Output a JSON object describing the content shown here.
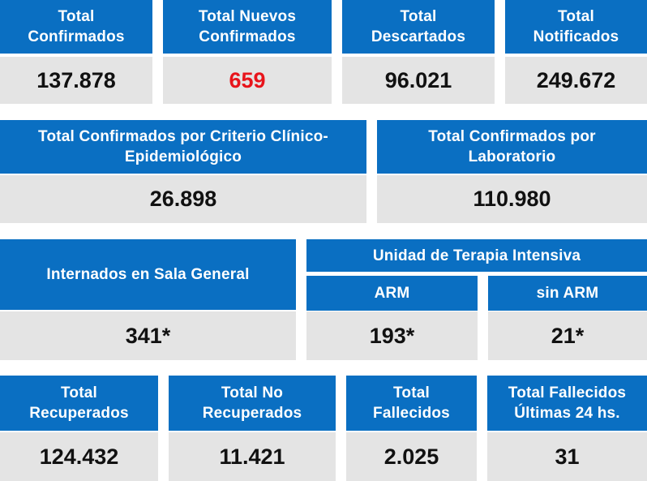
{
  "row1": [
    {
      "title": "Total\nConfirmados",
      "value": "137.878"
    },
    {
      "title": "Total Nuevos\nConfirmados",
      "value": "659",
      "value_color": "#e8141b"
    },
    {
      "title": "Total\nDescartados",
      "value": "96.021"
    },
    {
      "title": "Total\nNotificados",
      "value": "249.672"
    }
  ],
  "row2": [
    {
      "title": "Total Confirmados por Criterio Clínico-\nEpidemiológico",
      "value": "26.898"
    },
    {
      "title": "Total Confirmados por\nLaboratorio",
      "value": "110.980"
    }
  ],
  "row3": {
    "sala_general": {
      "title": "Internados en Sala General",
      "value": "341*"
    },
    "uti": {
      "title": "Unidad de Terapia Intensiva",
      "arm": {
        "title": "ARM",
        "value": "193*"
      },
      "sin_arm": {
        "title": "sin ARM",
        "value": "21*"
      }
    }
  },
  "row4": [
    {
      "title": "Total\nRecuperados",
      "value": "124.432"
    },
    {
      "title": "Total No\nRecuperados",
      "value": "11.421"
    },
    {
      "title": "Total\nFallecidos",
      "value": "2.025"
    },
    {
      "title": "Total Fallecidos\nÚltimas 24 hs.",
      "value": "31"
    }
  ],
  "colors": {
    "header_bg": "#0a6fc2",
    "value_bg": "#e4e4e4",
    "highlight": "#e8141b"
  }
}
